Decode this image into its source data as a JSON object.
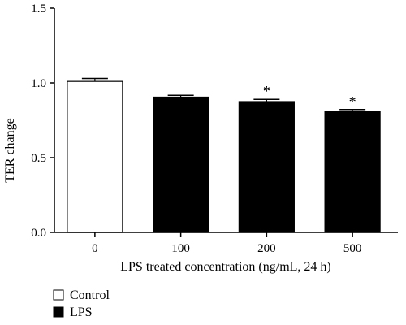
{
  "chart_data": {
    "type": "bar",
    "title": "",
    "xlabel": "LPS treated concentration (ng/mL, 24 h)",
    "ylabel": "TER change",
    "ylim": [
      0,
      1.5
    ],
    "yticks": [
      0.0,
      0.5,
      1.0,
      1.5
    ],
    "ytick_labels": [
      "0.0",
      "0.5",
      "1.0",
      "1.5"
    ],
    "grid": false,
    "legend_position": "bottom-left",
    "categories": [
      "0",
      "100",
      "200",
      "500"
    ],
    "values": [
      1.01,
      0.905,
      0.875,
      0.81
    ],
    "errors": [
      0.02,
      0.012,
      0.015,
      0.012
    ],
    "groups": [
      "Control",
      "LPS",
      "LPS",
      "LPS"
    ],
    "significance": [
      "",
      "",
      "*",
      "*"
    ],
    "series": [
      {
        "name": "Control",
        "color": "#ffffff",
        "edge_color": "#000000"
      },
      {
        "name": "LPS",
        "color": "#000000",
        "edge_color": "#000000"
      }
    ]
  }
}
